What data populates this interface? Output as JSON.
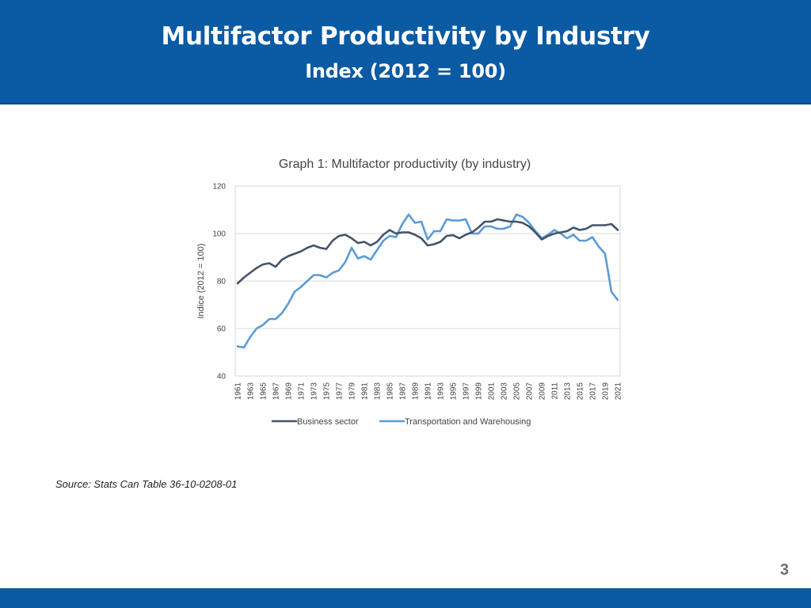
{
  "header": {
    "title": "Multifactor Productivity by Industry",
    "subtitle": "Index (2012 = 100)"
  },
  "source": "Source: Stats Can Table 36-10-0208-01",
  "page_number": "3",
  "colors": {
    "header_bg": "#0a5aa4",
    "business": "#44546a",
    "transport": "#5b9bd5"
  },
  "chart_data": {
    "type": "line",
    "title": "Graph 1: Multifactor productivity (by industry)",
    "xlabel": "",
    "ylabel": "Indice (2012 = 100)",
    "ylim": [
      40,
      120
    ],
    "yticks": [
      40,
      60,
      80,
      100,
      120
    ],
    "grid": true,
    "legend": "bottom",
    "x": [
      1961,
      1962,
      1963,
      1964,
      1965,
      1966,
      1967,
      1968,
      1969,
      1970,
      1971,
      1972,
      1973,
      1974,
      1975,
      1976,
      1977,
      1978,
      1979,
      1980,
      1981,
      1982,
      1983,
      1984,
      1985,
      1986,
      1987,
      1988,
      1989,
      1990,
      1991,
      1992,
      1993,
      1994,
      1995,
      1996,
      1997,
      1998,
      1999,
      2000,
      2001,
      2002,
      2003,
      2004,
      2005,
      2006,
      2007,
      2008,
      2009,
      2010,
      2011,
      2012,
      2013,
      2014,
      2015,
      2016,
      2017,
      2018,
      2019,
      2020,
      2021
    ],
    "xtick_labels": [
      "1961",
      "1963",
      "1965",
      "1967",
      "1969",
      "1971",
      "1973",
      "1975",
      "1977",
      "1979",
      "1981",
      "1983",
      "1985",
      "1987",
      "1989",
      "1991",
      "1993",
      "1995",
      "1997",
      "1999",
      "2001",
      "2003",
      "2005",
      "2007",
      "2009",
      "2011",
      "2013",
      "2015",
      "2017",
      "2019",
      "2021"
    ],
    "series": [
      {
        "name": "Business sector",
        "color": "#44546a",
        "values": [
          79,
          81.5,
          83.5,
          85.5,
          87,
          87.5,
          86,
          89,
          90.5,
          91.5,
          92.5,
          94,
          95,
          94,
          93.5,
          97,
          99,
          99.5,
          98,
          96,
          96.5,
          95,
          96.5,
          99.5,
          101.5,
          100,
          100.5,
          100.5,
          99.5,
          98,
          95,
          95.5,
          96.5,
          99,
          99.3,
          98,
          99.5,
          100.5,
          102.5,
          105,
          105,
          106,
          105.5,
          105,
          105,
          104.5,
          103,
          100.5,
          97.5,
          99,
          100,
          100.5,
          101,
          102.5,
          101.5,
          102,
          103.5,
          103.5,
          103.5,
          104,
          101.5
        ]
      },
      {
        "name": "Transportation and Warehousing",
        "color": "#5b9bd5",
        "values": [
          52.5,
          52,
          56.5,
          60,
          61.5,
          64,
          64,
          66.5,
          70.5,
          75.5,
          77.5,
          80,
          82.5,
          82.5,
          81.5,
          83.5,
          84.5,
          88,
          94,
          89.5,
          90.5,
          89,
          93,
          97,
          99,
          98.5,
          104,
          108,
          104.5,
          105,
          97.5,
          101,
          101,
          106,
          105.5,
          105.5,
          106,
          100,
          100,
          103,
          103,
          102,
          102,
          103,
          108,
          107,
          104.5,
          101,
          98,
          99.5,
          101.5,
          100,
          98,
          99.5,
          97,
          97,
          98.5,
          94.5,
          91.5,
          75.5,
          72
        ]
      }
    ]
  }
}
